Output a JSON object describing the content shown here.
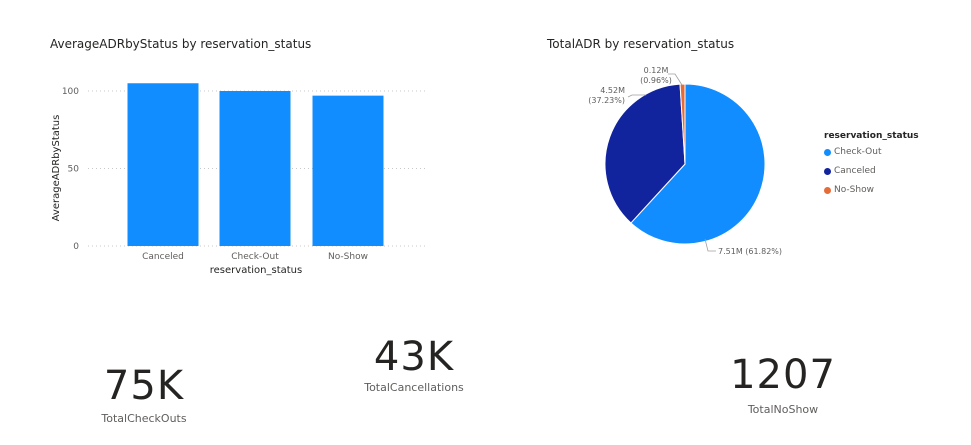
{
  "bar_title": "AverageADRbyStatus by reservation_status",
  "pie_title": "TotalADR by reservation_status",
  "legend": {
    "title": "reservation_status",
    "items": [
      {
        "label": "Check-Out",
        "color": "#118dff"
      },
      {
        "label": "Canceled",
        "color": "#12239e"
      },
      {
        "label": "No-Show",
        "color": "#e66c37"
      }
    ]
  },
  "kpis": {
    "checkouts": {
      "value": "75K",
      "label": "TotalCheckOuts"
    },
    "cancellations": {
      "value": "43K",
      "label": "TotalCancellations"
    },
    "noshow": {
      "value": "1207",
      "label": "TotalNoShow"
    }
  },
  "chart_data": [
    {
      "type": "bar",
      "title": "AverageADRbyStatus by reservation_status",
      "xlabel": "reservation_status",
      "ylabel": "AverageADRbyStatus",
      "categories": [
        "Canceled",
        "Check-Out",
        "No-Show"
      ],
      "values": [
        105,
        100,
        97
      ],
      "ylim": [
        0,
        115
      ],
      "yticks": [
        0,
        50,
        100
      ],
      "grid": true,
      "color": "#118dff"
    },
    {
      "type": "pie",
      "title": "TotalADR by reservation_status",
      "slices": [
        {
          "label": "Check-Out",
          "value": 7.51,
          "percent": 61.82,
          "color": "#118dff",
          "data_label": "7.51M (61.82%)"
        },
        {
          "label": "Canceled",
          "value": 4.52,
          "percent": 37.23,
          "color": "#12239e",
          "data_label_1": "4.52M",
          "data_label_2": "(37.23%)"
        },
        {
          "label": "No-Show",
          "value": 0.12,
          "percent": 0.96,
          "color": "#e66c37",
          "data_label_1": "0.12M",
          "data_label_2": "(0.96%)"
        }
      ],
      "legend_position": "right"
    }
  ]
}
